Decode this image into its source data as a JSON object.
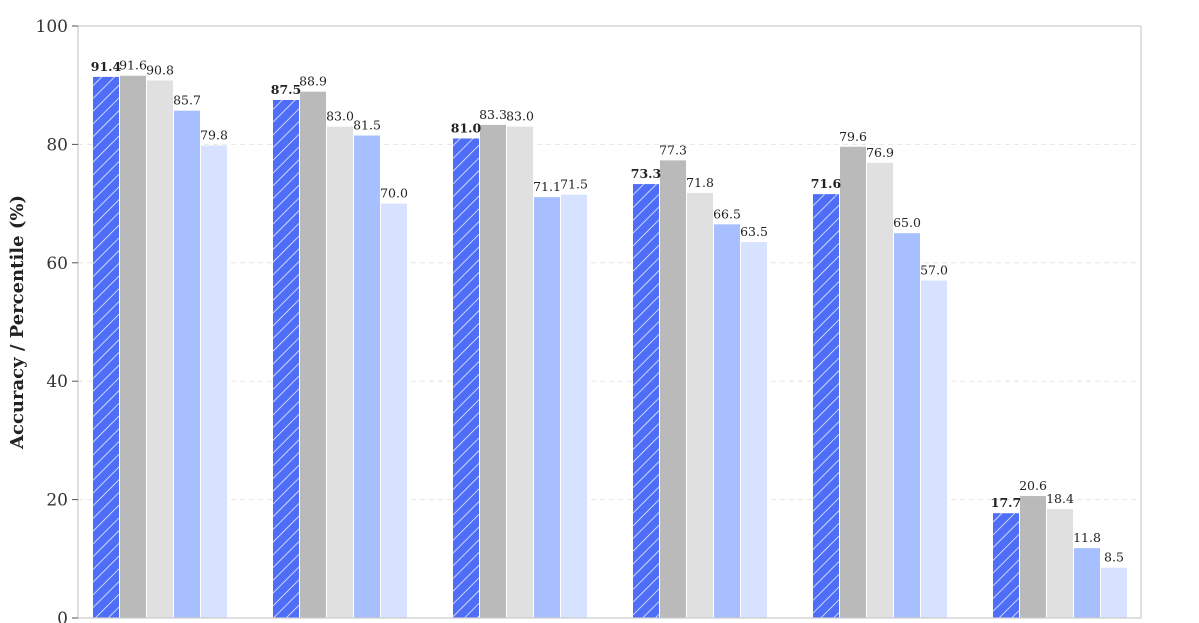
{
  "chart_data": {
    "type": "bar",
    "ylabel": "Accuracy / Percentile (%)",
    "xlabel": "",
    "ylim": [
      0,
      100
    ],
    "yticks": [
      0,
      20,
      40,
      60,
      80,
      100
    ],
    "grid": true,
    "num_groups": 6,
    "series": [
      {
        "values": [
          91.4,
          87.5,
          81.0,
          73.3,
          71.6,
          17.7
        ],
        "color": "#4f6ef7",
        "hatched": true,
        "bold_labels": true
      },
      {
        "values": [
          91.6,
          88.9,
          83.3,
          77.3,
          79.6,
          20.6
        ],
        "color": "#bababa",
        "hatched": false,
        "bold_labels": false
      },
      {
        "values": [
          90.8,
          83.0,
          83.0,
          71.8,
          76.9,
          18.4
        ],
        "color": "#e0e0e0",
        "hatched": false,
        "bold_labels": false
      },
      {
        "values": [
          85.7,
          81.5,
          71.1,
          66.5,
          65.0,
          11.8
        ],
        "color": "#a8bfff",
        "hatched": false,
        "bold_labels": false
      },
      {
        "values": [
          79.8,
          70.0,
          71.5,
          63.5,
          57.0,
          8.5
        ],
        "color": "#d6e2ff",
        "hatched": false,
        "bold_labels": false
      }
    ]
  }
}
